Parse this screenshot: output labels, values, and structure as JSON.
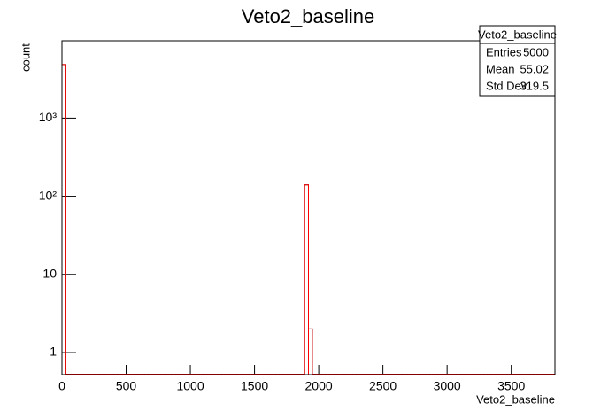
{
  "chart_data": {
    "type": "histogram",
    "title": "Veto2_baseline",
    "x_label": "Veto2_baseline",
    "y_label": "count",
    "bins": [
      0,
      30,
      60,
      90,
      120,
      150,
      180,
      210,
      240,
      270,
      300,
      330,
      360,
      390,
      420,
      450,
      480,
      510,
      540,
      570,
      600,
      630,
      660,
      690,
      720,
      750,
      780,
      810,
      840,
      870,
      900,
      930,
      960,
      990,
      1020,
      1050,
      1080,
      1110,
      1140,
      1170,
      1200,
      1230,
      1260,
      1290,
      1320,
      1350,
      1380,
      1410,
      1440,
      1470,
      1500,
      1530,
      1560,
      1590,
      1620,
      1650,
      1680,
      1710,
      1740,
      1770,
      1800,
      1830,
      1860,
      1890,
      1920,
      1950,
      1980,
      2010,
      2040,
      2070,
      2100,
      2130,
      2160,
      2190,
      2220,
      2250,
      2280,
      2310,
      2340,
      2370,
      2400,
      2430,
      2460,
      2490,
      2520,
      2550,
      2580,
      2610,
      2640,
      2670,
      2700,
      2730,
      2760,
      2790,
      2820,
      2850,
      2880,
      2910,
      2940,
      2970,
      3000,
      3030,
      3060,
      3090,
      3120,
      3150,
      3180,
      3210,
      3240,
      3270,
      3300,
      3330,
      3360,
      3390,
      3420,
      3450,
      3480,
      3510,
      3540,
      3570,
      3600,
      3630,
      3660,
      3690,
      3720,
      3750,
      3780,
      3810,
      3840
    ],
    "counts": [
      4858,
      0,
      0,
      0,
      0,
      0,
      0,
      0,
      0,
      0,
      0,
      0,
      0,
      0,
      0,
      0,
      0,
      0,
      0,
      0,
      0,
      0,
      0,
      0,
      0,
      0,
      0,
      0,
      0,
      0,
      0,
      0,
      0,
      0,
      0,
      0,
      0,
      0,
      0,
      0,
      0,
      0,
      0,
      0,
      0,
      0,
      0,
      0,
      0,
      0,
      0,
      0,
      0,
      0,
      0,
      0,
      0,
      0,
      0,
      0,
      0,
      0,
      0,
      140,
      2,
      0,
      0,
      0,
      0,
      0,
      0,
      0,
      0,
      0,
      0,
      0,
      0,
      0,
      0,
      0,
      0,
      0,
      0,
      0,
      0,
      0,
      0,
      0,
      0,
      0,
      0,
      0,
      0,
      0,
      0,
      0,
      0,
      0,
      0,
      0,
      0,
      0,
      0,
      0,
      0,
      0,
      0,
      0,
      0,
      0,
      0,
      0,
      0,
      0,
      0,
      0,
      0,
      0,
      0,
      0,
      0,
      0,
      0,
      0,
      0,
      0,
      0,
      0
    ],
    "color": "#ff0000",
    "xlim": [
      0,
      3840
    ],
    "xticks": [
      0,
      500,
      1000,
      1500,
      2000,
      2500,
      3000,
      3500
    ],
    "ylim": [
      0.52,
      9800
    ],
    "log_y": true,
    "yticks": [
      1,
      10,
      {
        "value": 100,
        "label": "10²"
      },
      {
        "value": 1000,
        "label": "10³"
      }
    ],
    "stats": {
      "title": "Veto2_baseline",
      "rows": [
        {
          "label": "Entries",
          "value": 5000
        },
        {
          "label": "Mean",
          "value": 55.02
        },
        {
          "label": "Std Dev",
          "value": 319.5
        }
      ]
    }
  }
}
